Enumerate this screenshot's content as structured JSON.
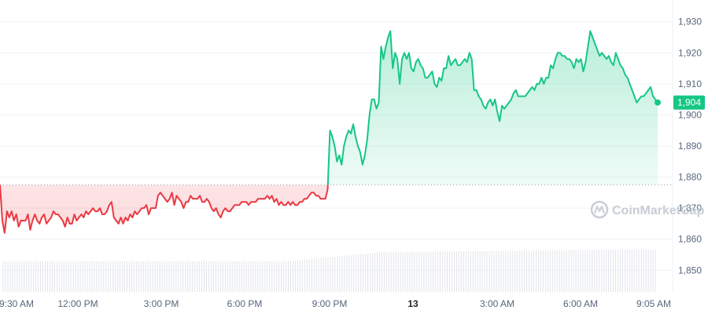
{
  "chart_data": {
    "type": "line",
    "baseline": 1877.5,
    "ylim": [
      1843,
      1937
    ],
    "yticks": [
      1930,
      1920,
      1910,
      1900,
      1890,
      1880,
      1870,
      1860,
      1850
    ],
    "ytick_labels": [
      "1,930",
      "1,920",
      "1,910",
      "1,900",
      "1,890",
      "1,880",
      "1,870",
      "1,860",
      "1,850"
    ],
    "xtick_labels": [
      "9:30 AM",
      "12:00 PM",
      "3:00 PM",
      "6:00 PM",
      "9:00 PM",
      "13",
      "3:00 AM",
      "6:00 AM",
      "9:05 AM"
    ],
    "xtick_bold_index": 5,
    "last_price_label": "1,904",
    "watermark": "CoinMarketCap",
    "colors": {
      "up": "#16c784",
      "down": "#ea3943",
      "price_tag_bg": "#16c784",
      "price_tag_text": "#ffffff",
      "grid": "#eff2f5",
      "volume": "#e2e5ea",
      "baseline": "#9aa3b2",
      "watermark": "#c8ced6"
    },
    "series": [
      {
        "values": [
          1877.5,
          1866,
          1862,
          1869,
          1867,
          1869,
          1866,
          1868,
          1864,
          1866,
          1866,
          1866,
          1868,
          1863,
          1866,
          1868,
          1866,
          1865,
          1867,
          1868,
          1865,
          1866,
          1867,
          1869,
          1868,
          1868,
          1867,
          1866,
          1864,
          1867,
          1865,
          1865,
          1868,
          1866,
          1867,
          1868,
          1867,
          1869,
          1868,
          1869,
          1870,
          1869,
          1869,
          1870,
          1868,
          1868,
          1869,
          1871,
          1872,
          1867,
          1866,
          1865,
          1867,
          1865,
          1867,
          1866,
          1868,
          1867,
          1869,
          1868,
          1869,
          1870,
          1870,
          1871,
          1868,
          1870,
          1870,
          1870,
          1874,
          1875,
          1874,
          1873,
          1872,
          1873,
          1875,
          1871,
          1874,
          1873,
          1872,
          1870,
          1872,
          1872,
          1874,
          1873,
          1873,
          1873,
          1874,
          1872,
          1872,
          1873,
          1872,
          1870,
          1869,
          1870,
          1868,
          1867,
          1869,
          1870,
          1869,
          1869,
          1870,
          1871,
          1871,
          1871,
          1872,
          1872,
          1872,
          1871,
          1872,
          1872,
          1872,
          1873,
          1873,
          1873,
          1873,
          1874,
          1873,
          1874,
          1872,
          1873,
          1871,
          1872,
          1871,
          1871,
          1872,
          1871,
          1872,
          1871,
          1871,
          1872,
          1872,
          1873,
          1873,
          1874,
          1875,
          1875,
          1874,
          1874,
          1873,
          1873,
          1873,
          1876,
          1895,
          1893,
          1890,
          1885,
          1887,
          1884,
          1890,
          1893,
          1895,
          1894,
          1897,
          1893,
          1890,
          1888,
          1884,
          1887,
          1892,
          1900,
          1905,
          1905,
          1902,
          1904,
          1922,
          1918,
          1922,
          1925,
          1927,
          1915,
          1920,
          1918,
          1910,
          1918,
          1920,
          1918,
          1920,
          1915,
          1914,
          1917,
          1918,
          1916,
          1915,
          1912,
          1912,
          1913,
          1914,
          1910,
          1909,
          1912,
          1911,
          1915,
          1915,
          1919,
          1916,
          1917,
          1918,
          1916,
          1916,
          1917,
          1918,
          1917,
          1920,
          1918,
          1908,
          1908,
          1906,
          1905,
          1903,
          1902,
          1904,
          1905,
          1903,
          1905,
          1901,
          1898,
          1903,
          1902,
          1903,
          1904,
          1905,
          1907,
          1908,
          1906,
          1906,
          1906,
          1906,
          1907,
          1908,
          1909,
          1908,
          1910,
          1910,
          1912,
          1910,
          1912,
          1912,
          1916,
          1915,
          1918,
          1920,
          1920,
          1919,
          1919,
          1918,
          1918,
          1917,
          1915,
          1918,
          1917,
          1918,
          1914,
          1917,
          1922,
          1927,
          1925,
          1923,
          1921,
          1919,
          1920,
          1919,
          1918,
          1919,
          1917,
          1916,
          1920,
          1918,
          1916,
          1915,
          1913,
          1912,
          1910,
          1908,
          1906,
          1904,
          1905,
          1906,
          1906,
          1907,
          1908,
          1909,
          1906,
          1905,
          1904
        ]
      }
    ]
  }
}
